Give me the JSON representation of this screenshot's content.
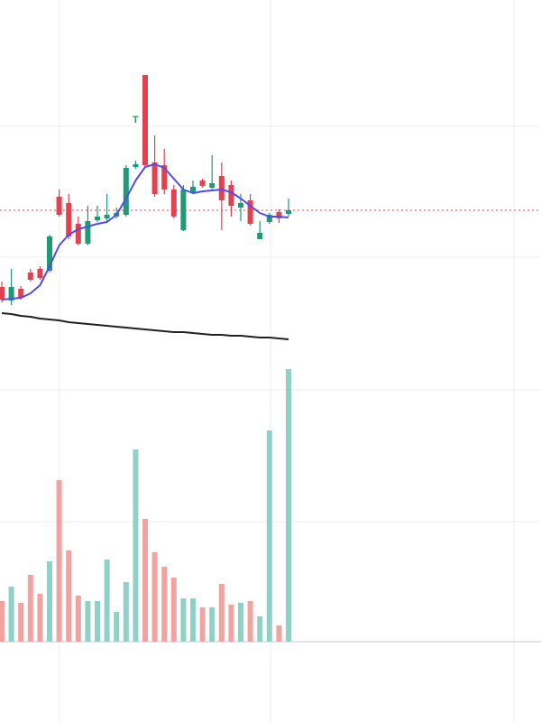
{
  "chart_data": [
    {
      "type": "candlestick",
      "open": [
        82,
        67,
        80,
        98,
        102,
        100,
        182,
        175,
        152,
        130,
        156,
        158,
        160,
        162,
        215,
        317,
        220,
        217,
        190,
        145,
        187,
        200,
        192,
        205,
        195,
        170,
        178,
        135,
        154,
        165,
        163
      ],
      "high": [
        88,
        102,
        83,
        102,
        105,
        140,
        190,
        185,
        160,
        172,
        172,
        185,
        170,
        217,
        222,
        317,
        250,
        235,
        195,
        195,
        200,
        202,
        228,
        220,
        200,
        185,
        185,
        155,
        164,
        168,
        180
      ],
      "low": [
        65,
        62,
        68,
        88,
        90,
        98,
        160,
        135,
        128,
        128,
        154,
        155,
        158,
        160,
        213,
        215,
        182,
        185,
        158,
        144,
        185,
        192,
        190,
        145,
        160,
        155,
        150,
        135,
        152,
        153,
        160
      ],
      "close": [
        68,
        82,
        70,
        90,
        92,
        138,
        162,
        138,
        130,
        155,
        160,
        162,
        164,
        214,
        218,
        217,
        185,
        190,
        160,
        190,
        193,
        194,
        197,
        178,
        172,
        175,
        152,
        142,
        162,
        158,
        167
      ],
      "up_color": "#1f9a76",
      "down_color": "#e5404f",
      "series": [
        {
          "color": "#4f4cf0",
          "values": [
            68,
            69,
            70,
            75,
            84,
            105,
            128,
            140,
            146,
            149,
            152,
            154,
            162,
            180,
            200,
            215,
            218,
            214,
            202,
            190,
            186,
            188,
            189,
            190,
            187,
            180,
            172,
            164,
            160,
            160,
            159
          ]
        },
        {
          "color": "#222222",
          "values": [
            53,
            52,
            50,
            49,
            47,
            46,
            45,
            43,
            42,
            41,
            40,
            39,
            38,
            37,
            36,
            35,
            34,
            33,
            32,
            32,
            31,
            30,
            29,
            29,
            28,
            28,
            27,
            26,
            26,
            25,
            24
          ]
        }
      ],
      "price_line": 167,
      "price_line_color": "#ee6a5e",
      "annotations": [
        {
          "text": "T",
          "index": 14,
          "value": 267,
          "color": "#1f9a76"
        }
      ],
      "ylim": [
        0,
        400
      ],
      "yticks": [
        115,
        260
      ],
      "grid": true
    },
    {
      "type": "bar",
      "values": [
        45,
        61,
        43,
        74,
        53,
        89,
        179,
        101,
        51,
        45,
        45,
        91,
        33,
        66,
        213,
        136,
        99,
        83,
        71,
        48,
        48,
        38,
        38,
        64,
        41,
        43,
        45,
        28,
        234,
        18,
        302
      ],
      "colors": [
        "#f2a3a0",
        "#8fd1c6",
        "#f2a3a0",
        "#f2a3a0",
        "#f2a3a0",
        "#8fd1c6",
        "#f2a3a0",
        "#f2a3a0",
        "#f2a3a0",
        "#8fd1c6",
        "#8fd1c6",
        "#8fd1c6",
        "#8fd1c6",
        "#8fd1c6",
        "#8fd1c6",
        "#f2a3a0",
        "#f2a3a0",
        "#f2a3a0",
        "#f2a3a0",
        "#8fd1c6",
        "#8fd1c6",
        "#f2a3a0",
        "#8fd1c6",
        "#f2a3a0",
        "#f2a3a0",
        "#8fd1c6",
        "#f2a3a0",
        "#8fd1c6",
        "#8fd1c6",
        "#f2a3a0",
        "#8fd1c6"
      ],
      "ylim": [
        0,
        311
      ],
      "yticks": [
        133,
        279
      ],
      "grid": true
    }
  ]
}
